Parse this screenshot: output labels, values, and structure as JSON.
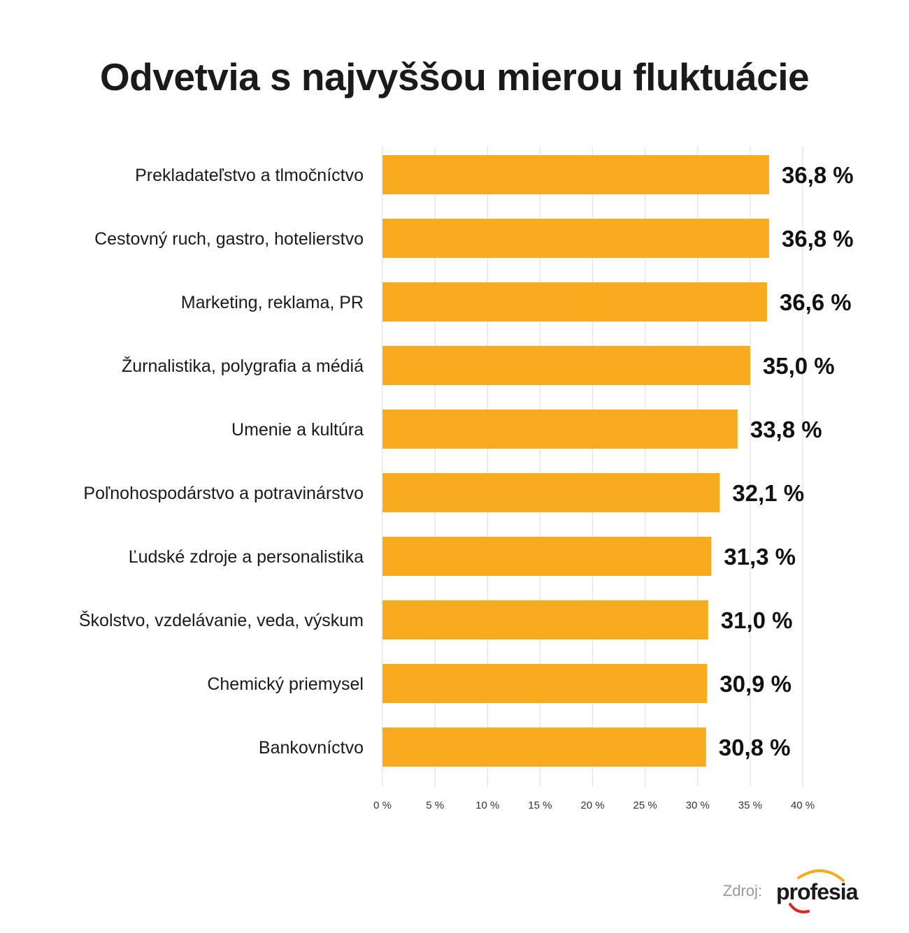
{
  "title": "Odvetvia s najvyššou mierou fluktuácie",
  "chart_data": {
    "type": "bar",
    "orientation": "horizontal",
    "categories": [
      "Prekladateľstvo a tlmočníctvo",
      "Cestovný ruch, gastro, hotelierstvo",
      "Marketing, reklama, PR",
      "Žurnalistika, polygrafia a médiá",
      "Umenie a kultúra",
      "Poľnohospodárstvo a potravinárstvo",
      "Ľudské zdroje a personalistika",
      "Školstvo, vzdelávanie, veda, výskum",
      "Chemický priemysel",
      "Bankovníctvo"
    ],
    "values": [
      36.8,
      36.8,
      36.6,
      35.0,
      33.8,
      32.1,
      31.3,
      31.0,
      30.9,
      30.8
    ],
    "value_labels": [
      "36,8 %",
      "36,8 %",
      "36,6 %",
      "35,0 %",
      "33,8 %",
      "32,1 %",
      "31,3 %",
      "31,0 %",
      "30,9 %",
      "30,8 %"
    ],
    "x_ticks": [
      0,
      5,
      10,
      15,
      20,
      25,
      30,
      35,
      40
    ],
    "x_tick_labels": [
      "0 %",
      "5 %",
      "10 %",
      "15 %",
      "20 %",
      "25 %",
      "30 %",
      "35 %",
      "40 %"
    ],
    "xlim": [
      0,
      40
    ],
    "grid": true,
    "bar_color": "#F7AC20",
    "grid_color": "#E6E6E6"
  },
  "source": {
    "label": "Zdroj:",
    "logo_text": "profesia",
    "logo_colors": [
      "#F7AC20",
      "#E2231A"
    ]
  }
}
